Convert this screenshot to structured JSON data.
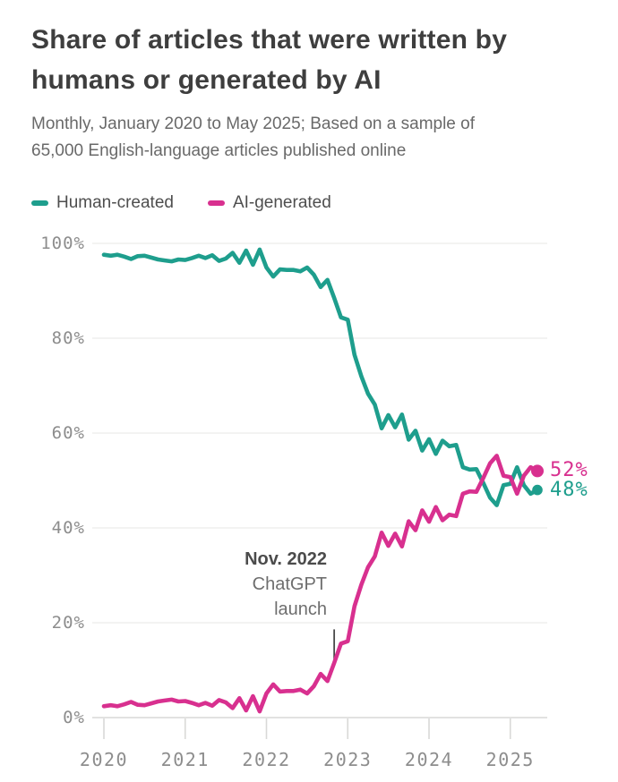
{
  "title": "Share of articles that were written by humans or generated by AI",
  "subtitle": "Monthly, January 2020 to May 2025; Based on a sample of 65,000 English-language articles published online",
  "legend": [
    {
      "label": "Human-created",
      "color": "#1e9e8d"
    },
    {
      "label": "AI-generated",
      "color": "#d8308f"
    }
  ],
  "colors": {
    "title": "#3e3e3e",
    "subtitle": "#696969",
    "grid": "#ececea",
    "axis": "#d9d9d7",
    "tick_label": "#8d8d8d",
    "annotation_title": "#4b4b4b",
    "annotation_body": "#6e6e6e",
    "marker_line": "#4a4a4a"
  },
  "chart_data": {
    "type": "line",
    "title": "Share of articles that were written by humans or generated by AI",
    "x_unit": "month",
    "x_range": [
      "2020-01",
      "2025-05"
    ],
    "xlabel": "",
    "ylabel": "",
    "ylim": [
      0,
      100
    ],
    "grid": "horizontal",
    "legend_position": "top-left",
    "x_ticks": [
      {
        "month": 0,
        "label": "2020"
      },
      {
        "month": 12,
        "label": "2021"
      },
      {
        "month": 24,
        "label": "2022"
      },
      {
        "month": 36,
        "label": "2023"
      },
      {
        "month": 48,
        "label": "2024"
      },
      {
        "month": 60,
        "label": "2025"
      }
    ],
    "y_ticks": [
      {
        "value": 0,
        "label": "0%"
      },
      {
        "value": 20,
        "label": "20%"
      },
      {
        "value": 40,
        "label": "40%"
      },
      {
        "value": 60,
        "label": "60%"
      },
      {
        "value": 80,
        "label": "80%"
      },
      {
        "value": 100,
        "label": "100%"
      }
    ],
    "series": [
      {
        "name": "Human-created",
        "color": "#1e9e8d",
        "end_label": "48%",
        "end_value": 48,
        "values": [
          97.6,
          97.4,
          97.6,
          97.2,
          96.7,
          97.3,
          97.4,
          97.0,
          96.6,
          96.4,
          96.2,
          96.6,
          96.5,
          96.9,
          97.4,
          96.9,
          97.5,
          96.3,
          96.8,
          98.0,
          95.9,
          98.5,
          95.5,
          98.7,
          94.9,
          93.0,
          94.5,
          94.4,
          94.4,
          94.1,
          94.9,
          93.4,
          90.8,
          92.3,
          88.5,
          84.4,
          83.9,
          76.5,
          72.0,
          68.3,
          66.0,
          61.0,
          63.8,
          61.2,
          63.9,
          58.6,
          60.5,
          56.3,
          58.7,
          55.6,
          58.4,
          57.2,
          57.5,
          52.8,
          52.3,
          52.4,
          49.5,
          46.4,
          44.8,
          49.0,
          49.3,
          52.8,
          49.0,
          47.2,
          48.0
        ]
      },
      {
        "name": "AI-generated",
        "color": "#d8308f",
        "end_label": "52%",
        "end_value": 52,
        "values": [
          2.4,
          2.6,
          2.4,
          2.8,
          3.3,
          2.7,
          2.6,
          3.0,
          3.4,
          3.6,
          3.8,
          3.4,
          3.5,
          3.1,
          2.6,
          3.1,
          2.5,
          3.7,
          3.2,
          2.0,
          4.1,
          1.5,
          4.5,
          1.3,
          5.1,
          7.0,
          5.5,
          5.6,
          5.6,
          5.9,
          5.1,
          6.6,
          9.2,
          7.7,
          11.5,
          15.6,
          16.1,
          23.5,
          28.0,
          31.7,
          34.0,
          39.0,
          36.2,
          38.8,
          36.1,
          41.4,
          39.5,
          43.7,
          41.3,
          44.4,
          41.6,
          42.8,
          42.5,
          47.2,
          47.7,
          47.6,
          50.5,
          53.6,
          55.2,
          51.0,
          50.7,
          47.2,
          51.0,
          52.8,
          52.0
        ]
      }
    ],
    "annotation": {
      "lines": [
        "Nov. 2022",
        "ChatGPT",
        "launch"
      ],
      "marker_month": 34
    }
  }
}
